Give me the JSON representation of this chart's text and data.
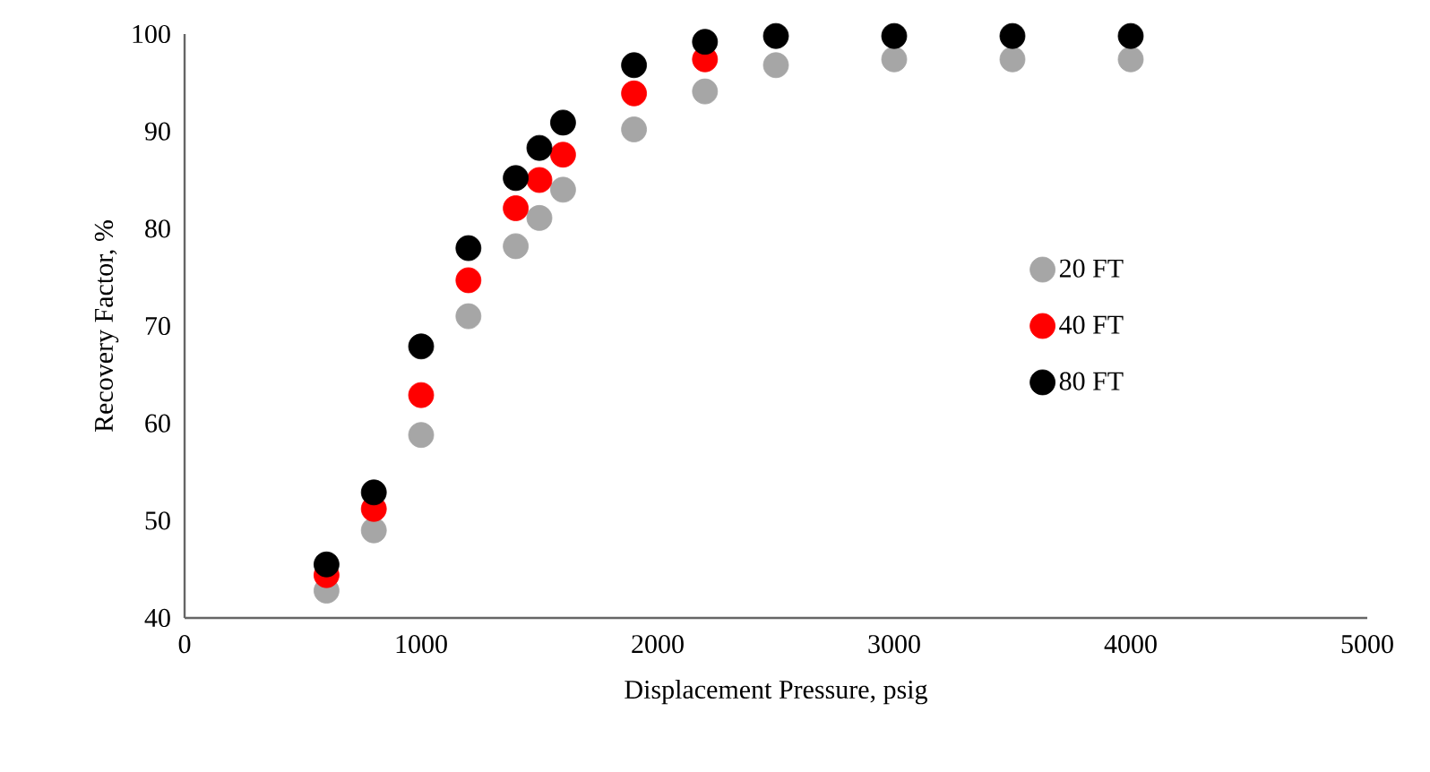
{
  "chart_data": {
    "type": "scatter",
    "xlabel": "Displacement Pressure, psig",
    "ylabel": "Recovery Factor, %",
    "x": [
      600,
      800,
      1000,
      1200,
      1400,
      1500,
      1600,
      1900,
      2200,
      2500,
      3000,
      3500,
      4000
    ],
    "series": [
      {
        "name": "20 FT",
        "color": "#a6a6a6",
        "values": [
          42.8,
          49.0,
          58.8,
          71.0,
          78.2,
          81.1,
          84.0,
          90.2,
          94.1,
          96.8,
          97.4,
          97.4,
          97.4
        ]
      },
      {
        "name": "40 FT",
        "color": "#ff0000",
        "values": [
          44.4,
          51.2,
          62.9,
          74.7,
          82.1,
          85.0,
          87.6,
          93.9,
          97.4,
          null,
          null,
          null,
          null
        ]
      },
      {
        "name": "80 FT",
        "color": "#000000",
        "values": [
          45.5,
          52.9,
          67.9,
          78.0,
          85.2,
          88.3,
          90.9,
          96.8,
          99.2,
          99.8,
          99.8,
          99.8,
          99.8
        ]
      }
    ],
    "xlim": [
      0,
      5000
    ],
    "ylim": [
      40,
      100
    ],
    "xticks": [
      0,
      1000,
      2000,
      3000,
      4000,
      5000
    ],
    "yticks": [
      40,
      50,
      60,
      70,
      80,
      90,
      100
    ],
    "marker": "circle",
    "legend": "right",
    "grid": false
  }
}
